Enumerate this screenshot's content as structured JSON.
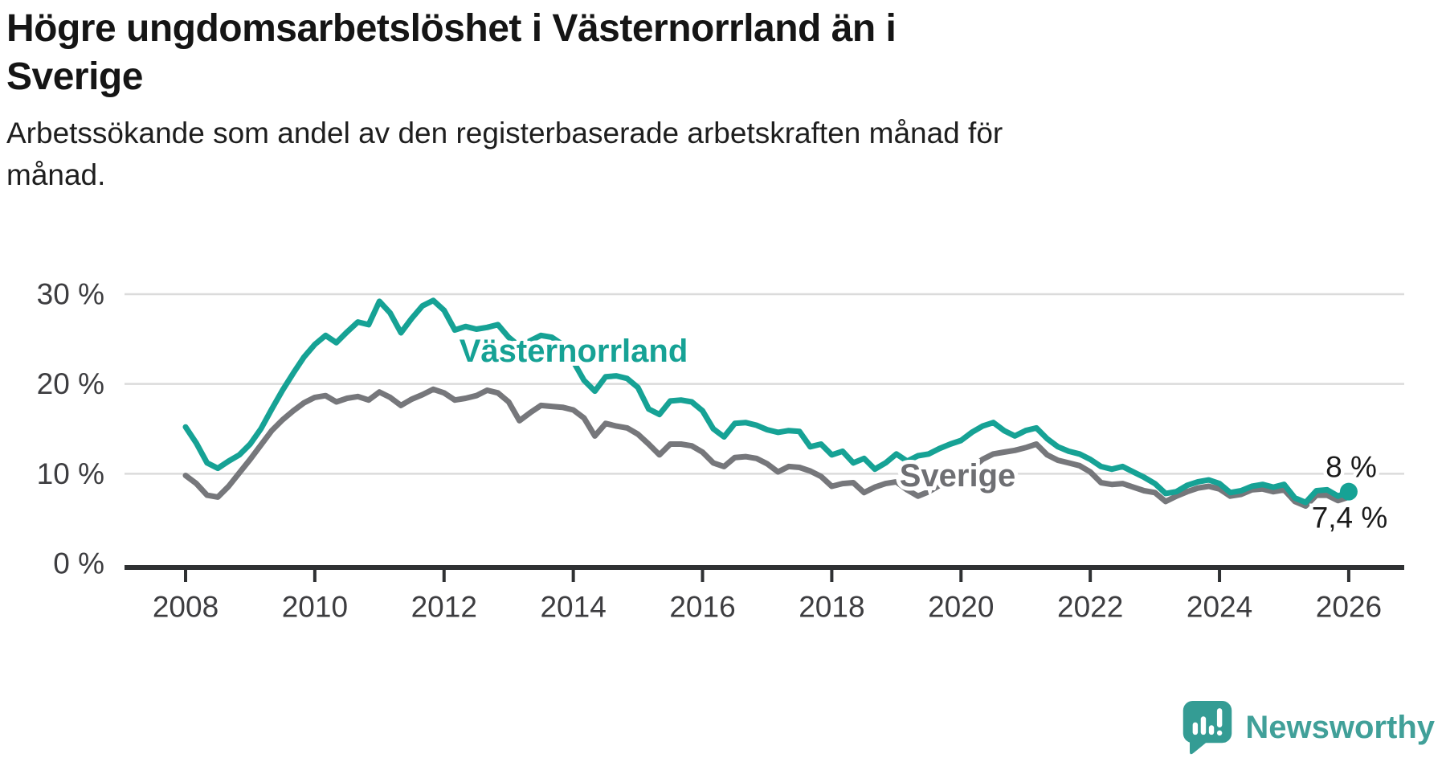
{
  "header": {
    "title_lines": [
      "Högre ungdomsarbetslöshet i Västernorrland än i",
      "Sverige"
    ],
    "subtitle_lines": [
      "Arbetssökande som andel av den registerbaserade arbetskraften månad för",
      "månad."
    ]
  },
  "footer": {
    "brand": "Newsworthy",
    "logo_icon": "newsworthy-speech-bubble-bar-chart-icon"
  },
  "colors": {
    "vasternorrland_line": "#16A295",
    "sverige_line": "#76777B",
    "sverige_label": "#6E6F73",
    "grid": "#DBDBDB",
    "axis": "#2F3133",
    "tick_text": "#3D3D40",
    "value_label_text": "#1A1A1A",
    "logo_teal": "#349C94"
  },
  "chart_data": {
    "type": "line",
    "title": "Högre ungdomsarbetslöshet i Västernorrland än i Sverige",
    "subtitle": "Arbetssökande som andel av den registerbaserade arbetskraften månad för månad.",
    "unit": "%",
    "grid": "horizontal-only",
    "legend": "inline-series-labels",
    "x_axis": {
      "tick_years": [
        2008,
        2010,
        2012,
        2014,
        2016,
        2018,
        2020,
        2022,
        2024,
        2026
      ],
      "tick_labels": [
        "2008",
        "2010",
        "2012",
        "2014",
        "2016",
        "2018",
        "2020",
        "2022",
        "2024",
        "2026"
      ]
    },
    "y_axis": {
      "tick_values": [
        0,
        10,
        20,
        30
      ],
      "tick_labels": [
        "0 %",
        "10 %",
        "20 %",
        "30 %"
      ],
      "ylim": [
        0,
        31.5
      ]
    },
    "series": [
      {
        "name": "Västernorrland",
        "color": "#16A295",
        "end_value_label": "8 %",
        "end_marker": "dot",
        "x_start_year": 2008.0,
        "x_step_years": 0.166667,
        "values": [
          15.2,
          13.4,
          11.2,
          10.6,
          11.4,
          12.1,
          13.3,
          15.0,
          17.2,
          19.3,
          21.2,
          23.0,
          24.4,
          25.4,
          24.6,
          25.8,
          26.9,
          26.6,
          29.2,
          27.9,
          25.7,
          27.3,
          28.7,
          29.3,
          28.2,
          26.0,
          26.4,
          26.1,
          26.3,
          26.6,
          25.2,
          24.2,
          24.8,
          25.4,
          25.2,
          24.4,
          22.5,
          20.4,
          19.2,
          20.8,
          20.9,
          20.6,
          19.6,
          17.2,
          16.6,
          18.1,
          18.2,
          18.0,
          17.0,
          15.0,
          14.1,
          15.6,
          15.7,
          15.4,
          14.9,
          14.6,
          14.8,
          14.7,
          13.0,
          13.3,
          12.1,
          12.5,
          11.2,
          11.7,
          10.5,
          11.2,
          12.2,
          11.4,
          12.0,
          12.2,
          12.8,
          13.3,
          13.7,
          14.6,
          15.3,
          15.7,
          14.8,
          14.2,
          14.8,
          15.1,
          13.9,
          13.0,
          12.5,
          12.2,
          11.6,
          10.8,
          10.5,
          10.8,
          10.2,
          9.6,
          8.9,
          7.8,
          8.0,
          8.7,
          9.1,
          9.3,
          8.9,
          7.9,
          8.1,
          8.6,
          8.8,
          8.5,
          8.8,
          7.3,
          6.8,
          8.1,
          8.2,
          7.5,
          8.0
        ]
      },
      {
        "name": "Sverige",
        "color": "#76777B",
        "end_value_label": "7,4 %",
        "end_marker": "none",
        "x_start_year": 2008.0,
        "x_step_years": 0.166667,
        "values": [
          9.8,
          8.9,
          7.6,
          7.4,
          8.6,
          10.1,
          11.6,
          13.2,
          14.8,
          16.0,
          17.0,
          17.9,
          18.5,
          18.7,
          18.0,
          18.4,
          18.6,
          18.2,
          19.1,
          18.5,
          17.6,
          18.3,
          18.8,
          19.4,
          19.0,
          18.2,
          18.4,
          18.7,
          19.3,
          19.0,
          18.0,
          15.9,
          16.8,
          17.6,
          17.5,
          17.4,
          17.1,
          16.2,
          14.2,
          15.6,
          15.3,
          15.1,
          14.4,
          13.3,
          12.1,
          13.3,
          13.3,
          13.1,
          12.4,
          11.2,
          10.8,
          11.8,
          11.9,
          11.7,
          11.1,
          10.2,
          10.8,
          10.7,
          10.3,
          9.7,
          8.6,
          8.9,
          9.0,
          7.9,
          8.5,
          8.9,
          9.1,
          8.2,
          7.5,
          8.0,
          8.7,
          9.3,
          9.8,
          10.6,
          11.6,
          12.2,
          12.4,
          12.6,
          12.9,
          13.3,
          12.1,
          11.5,
          11.2,
          10.9,
          10.2,
          9.0,
          8.8,
          8.9,
          8.5,
          8.1,
          7.9,
          6.9,
          7.5,
          8.0,
          8.4,
          8.6,
          8.3,
          7.5,
          7.7,
          8.2,
          8.3,
          8.0,
          8.2,
          6.9,
          6.4,
          7.6,
          7.6,
          7.0,
          7.4
        ]
      }
    ]
  }
}
